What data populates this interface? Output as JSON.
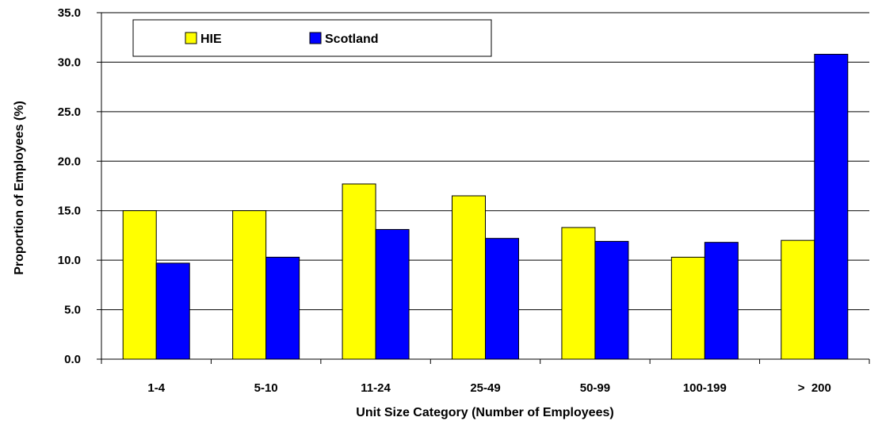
{
  "chart_data": {
    "type": "bar",
    "title": "",
    "xlabel": "Unit Size Category  (Number of Employees)",
    "ylabel": "Proportion of Employees (%)",
    "categories": [
      "1-4",
      "5-10",
      "11-24",
      "25-49",
      "50-99",
      "100-199",
      ">  200"
    ],
    "ylim": [
      0,
      35
    ],
    "yticks": [
      "0.0",
      "5.0",
      "10.0",
      "15.0",
      "20.0",
      "25.0",
      "30.0",
      "35.0"
    ],
    "grid": true,
    "legend_position": "top-left",
    "series": [
      {
        "name": "HIE",
        "color": "#ffff00",
        "values": [
          15.0,
          15.0,
          17.7,
          16.5,
          13.3,
          10.3,
          12.0
        ]
      },
      {
        "name": "Scotland",
        "color": "#0000ff",
        "values": [
          9.7,
          10.3,
          13.1,
          12.2,
          11.9,
          11.8,
          30.8
        ]
      }
    ]
  }
}
